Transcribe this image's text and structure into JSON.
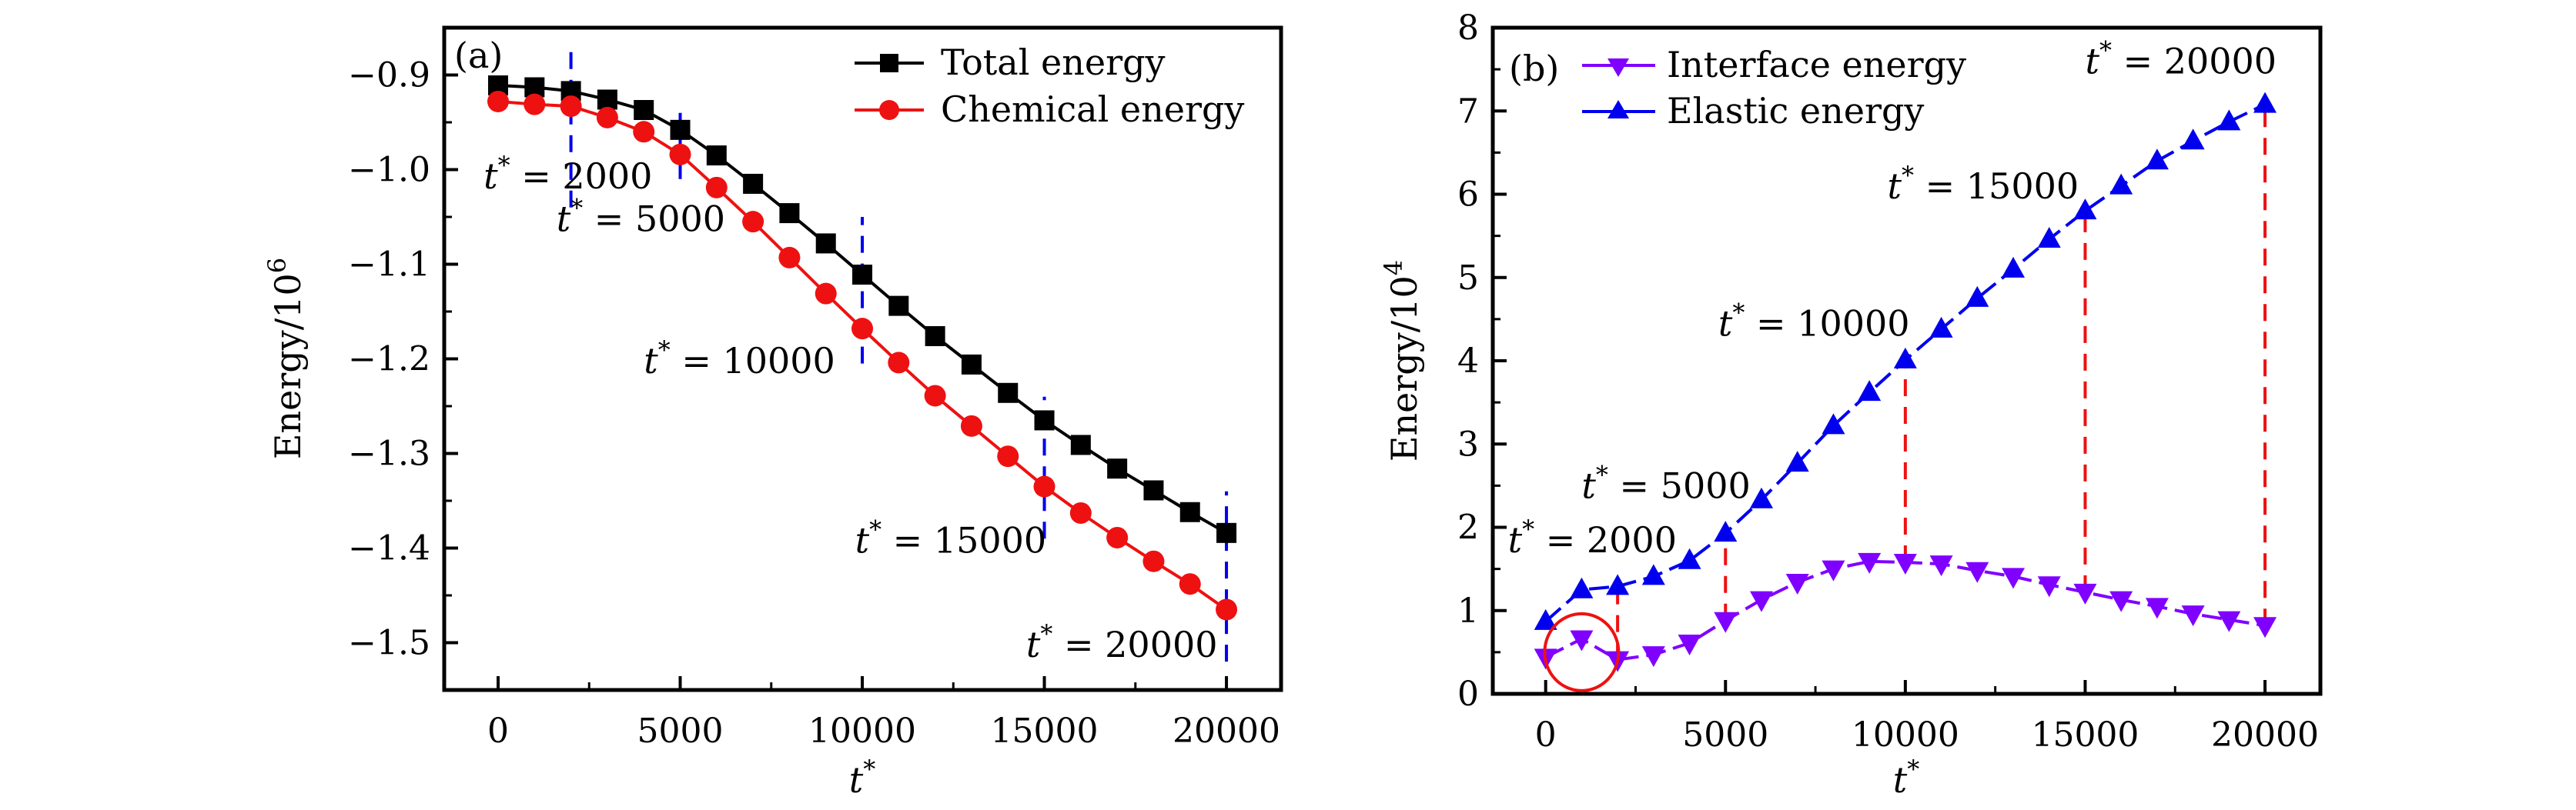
{
  "figure": {
    "panels": [
      "a",
      "b"
    ]
  },
  "chart_data": [
    {
      "panel": "(a)",
      "type": "line",
      "title": "",
      "xlabel": "t*",
      "ylabel": "Energy/10^6",
      "xlim": [
        -1480,
        21500
      ],
      "ylim": [
        -1.55,
        -0.85
      ],
      "xticks": [
        0,
        5000,
        10000,
        15000,
        20000
      ],
      "xtick_labels": [
        "0",
        "5000",
        "10000",
        "15000",
        "20000"
      ],
      "yticks": [
        -0.9,
        -1.0,
        -1.1,
        -1.2,
        -1.3,
        -1.4,
        -1.5
      ],
      "ytick_labels": [
        "−0.9",
        "−1.0",
        "−1.1",
        "−1.2",
        "−1.3",
        "−1.4",
        "−1.5"
      ],
      "grid": false,
      "legend": "top-right",
      "x": [
        0,
        1000,
        2000,
        3000,
        4000,
        5000,
        6000,
        7000,
        8000,
        9000,
        10000,
        11000,
        12000,
        13000,
        14000,
        15000,
        16000,
        17000,
        18000,
        19000,
        20000
      ],
      "series": [
        {
          "name": "Total energy",
          "color": "#000000",
          "marker": "square",
          "values": [
            -0.911,
            -0.913,
            -0.917,
            -0.926,
            -0.937,
            -0.958,
            -0.985,
            -1.015,
            -1.046,
            -1.078,
            -1.111,
            -1.144,
            -1.176,
            -1.206,
            -1.236,
            -1.265,
            -1.291,
            -1.316,
            -1.339,
            -1.362,
            -1.384
          ]
        },
        {
          "name": "Chemical energy",
          "color": "#ee1111",
          "marker": "circle",
          "values": [
            -0.928,
            -0.931,
            -0.933,
            -0.945,
            -0.96,
            -0.984,
            -1.019,
            -1.055,
            -1.093,
            -1.131,
            -1.168,
            -1.204,
            -1.239,
            -1.271,
            -1.303,
            -1.335,
            -1.363,
            -1.389,
            -1.414,
            -1.438,
            -1.465
          ]
        }
      ],
      "markers": [
        {
          "x": 2000,
          "y_range": [
            -1.04,
            -0.865
          ],
          "color": "#0000ee"
        },
        {
          "x": 5000,
          "y_range": [
            -1.01,
            -0.94
          ],
          "color": "#0000ee"
        },
        {
          "x": 10000,
          "y_range": [
            -1.205,
            -1.05
          ],
          "color": "#0000ee"
        },
        {
          "x": 15000,
          "y_range": [
            -1.39,
            -1.24
          ],
          "color": "#0000ee"
        },
        {
          "x": 20000,
          "y_range": [
            -1.52,
            -1.34
          ],
          "color": "#0000ee"
        }
      ],
      "annotations": [
        {
          "text": "t* = 2000",
          "x": -400,
          "y": -1.02
        },
        {
          "text": "t* = 5000",
          "x": 1600,
          "y": -1.065
        },
        {
          "text": "t* = 10000",
          "x": 4000,
          "y": -1.215
        },
        {
          "text": "t* = 15000",
          "x": 9800,
          "y": -1.405
        },
        {
          "text": "t* = 20000",
          "x": 14500,
          "y": -1.515
        }
      ]
    },
    {
      "panel": "(b)",
      "type": "line",
      "title": "",
      "xlabel": "t*",
      "ylabel": "Energy/10^4",
      "xlim": [
        -1470,
        21540
      ],
      "ylim": [
        0,
        8
      ],
      "xticks": [
        0,
        5000,
        10000,
        15000,
        20000
      ],
      "xtick_labels": [
        "0",
        "5000",
        "10000",
        "15000",
        "20000"
      ],
      "yticks": [
        0,
        1,
        2,
        3,
        4,
        5,
        6,
        7,
        8
      ],
      "ytick_labels": [
        "0",
        "1",
        "2",
        "3",
        "4",
        "5",
        "6",
        "7",
        "8"
      ],
      "grid": false,
      "legend": "top-left",
      "x": [
        0,
        1000,
        2000,
        3000,
        4000,
        5000,
        6000,
        7000,
        8000,
        9000,
        10000,
        11000,
        12000,
        13000,
        14000,
        15000,
        16000,
        17000,
        18000,
        19000,
        20000
      ],
      "series": [
        {
          "name": "Interface energy",
          "color": "#8000ff",
          "marker": "triangle-down",
          "values": [
            0.44,
            0.66,
            0.41,
            0.47,
            0.61,
            0.88,
            1.13,
            1.34,
            1.5,
            1.59,
            1.58,
            1.56,
            1.48,
            1.41,
            1.31,
            1.22,
            1.13,
            1.05,
            0.96,
            0.89,
            0.82
          ]
        },
        {
          "name": "Elastic energy",
          "color": "#0000ee",
          "marker": "triangle-up",
          "values": [
            0.87,
            1.25,
            1.29,
            1.41,
            1.6,
            1.93,
            2.33,
            2.77,
            3.22,
            3.62,
            4.01,
            4.38,
            4.75,
            5.1,
            5.46,
            5.8,
            6.1,
            6.4,
            6.64,
            6.87,
            7.08
          ]
        }
      ],
      "markers": [
        {
          "x": 2000,
          "y_range": [
            0.41,
            1.29
          ],
          "color": "#ee1111"
        },
        {
          "x": 5000,
          "y_range": [
            0.88,
            1.93
          ],
          "color": "#ee1111"
        },
        {
          "x": 10000,
          "y_range": [
            1.58,
            4.01
          ],
          "color": "#ee1111"
        },
        {
          "x": 15000,
          "y_range": [
            1.22,
            5.8
          ],
          "color": "#ee1111"
        },
        {
          "x": 20000,
          "y_range": [
            0.82,
            7.08
          ],
          "color": "#ee1111"
        }
      ],
      "highlight": {
        "shape": "ellipse",
        "center_x": 1000,
        "center_y": 0.5,
        "color": "#ee1111"
      },
      "annotations": [
        {
          "text": "t* = 2000",
          "x": -1050,
          "y": 1.7
        },
        {
          "text": "t* = 5000",
          "x": 1000,
          "y": 2.35
        },
        {
          "text": "t* = 10000",
          "x": 4800,
          "y": 4.3
        },
        {
          "text": "t* = 15000",
          "x": 9500,
          "y": 5.95
        },
        {
          "text": "t* = 20000",
          "x": 15000,
          "y": 7.45
        }
      ]
    }
  ]
}
